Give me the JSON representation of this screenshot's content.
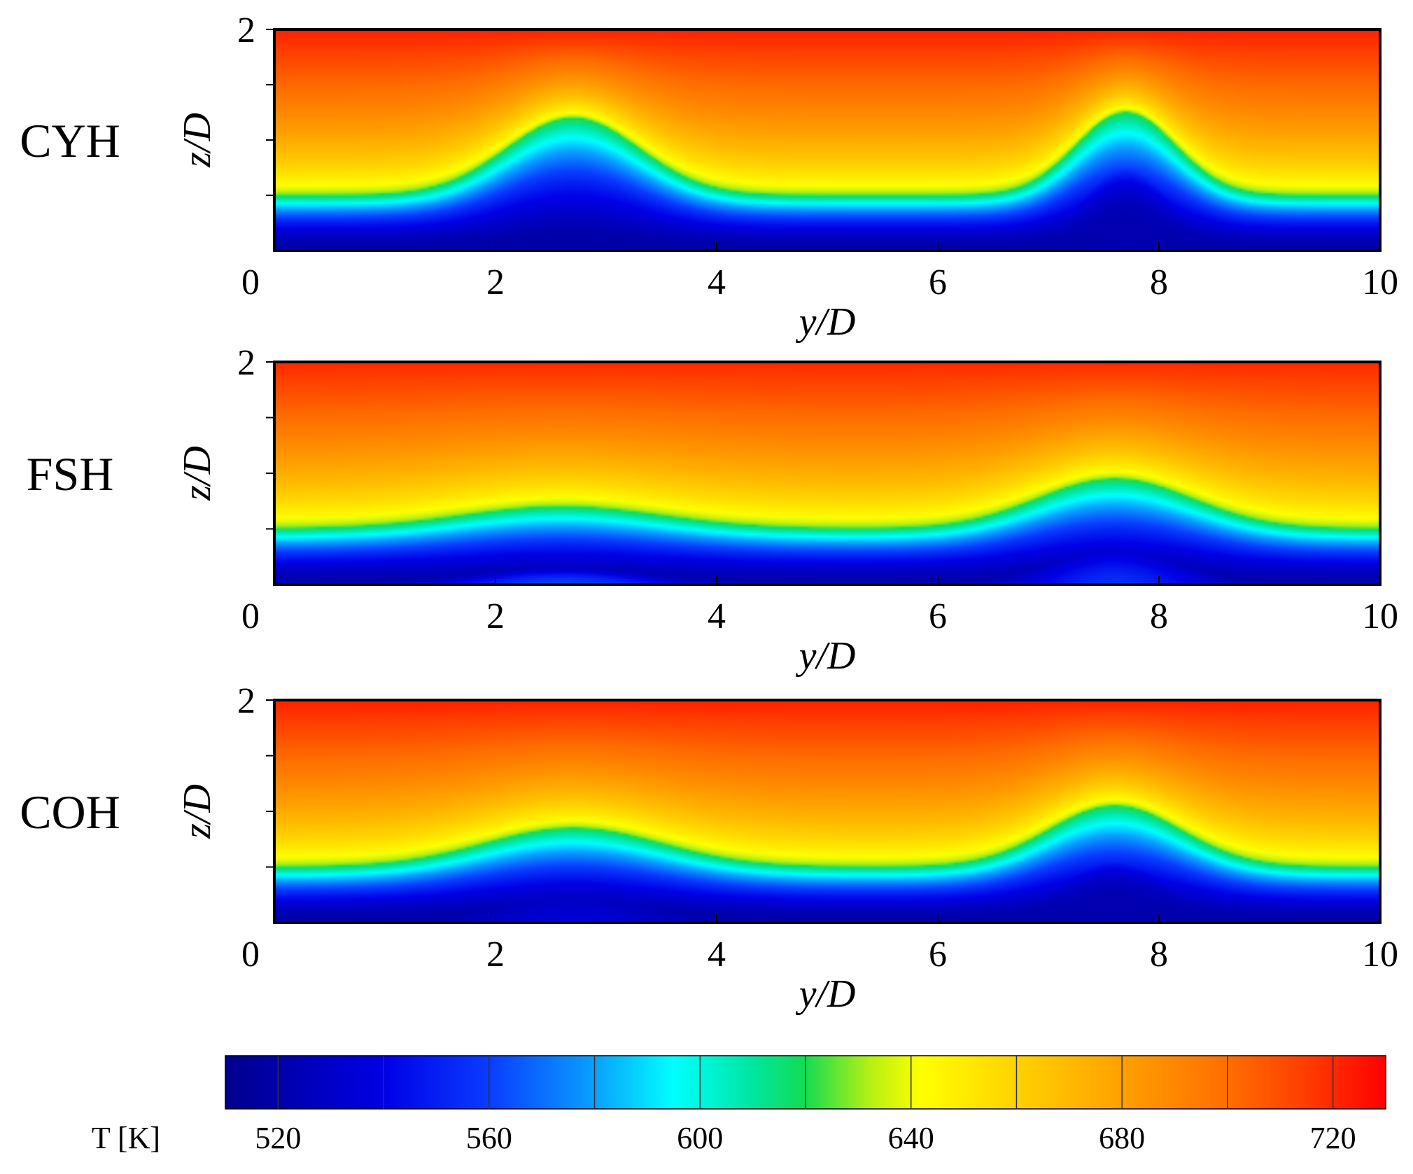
{
  "chart_data": [
    {
      "type": "heatmap",
      "panel_label": "CYH",
      "quantity": "T",
      "unit": "K",
      "xlabel": "y/D",
      "ylabel": "z/D",
      "xlim": [
        0,
        10
      ],
      "ylim": [
        0,
        2
      ],
      "x_ticks": [
        "0",
        "2",
        "4",
        "6",
        "8",
        "10"
      ],
      "y_ticks": [
        "2"
      ],
      "x_tick_values": [
        0,
        2,
        4,
        6,
        8,
        10
      ],
      "y_tick_values": [
        0.5,
        1.0,
        1.5,
        2.0
      ],
      "field": {
        "wall_T": 518,
        "top_T": 722,
        "base_front_height": 0.5,
        "plumes": [
          {
            "y_center": 2.7,
            "sigma": 0.6,
            "front_height": 1.2,
            "core_T": 520,
            "core_height": 0.28,
            "core_sigma": 0.55
          },
          {
            "y_center": 7.7,
            "sigma": 0.45,
            "front_height": 1.25,
            "core_T": 522,
            "core_height": 0.75,
            "core_sigma": 0.4
          }
        ]
      }
    },
    {
      "type": "heatmap",
      "panel_label": "FSH",
      "quantity": "T",
      "unit": "K",
      "xlabel": "y/D",
      "ylabel": "z/D",
      "xlim": [
        0,
        10
      ],
      "ylim": [
        0,
        2
      ],
      "x_ticks": [
        "0",
        "2",
        "4",
        "6",
        "8",
        "10"
      ],
      "y_ticks": [
        "2"
      ],
      "x_tick_values": [
        0,
        2,
        4,
        6,
        8,
        10
      ],
      "y_tick_values": [
        0.5,
        1.0,
        1.5,
        2.0
      ],
      "field": {
        "wall_T": 520,
        "top_T": 720,
        "base_front_height": 0.5,
        "plumes": [
          {
            "y_center": 2.6,
            "sigma": 0.9,
            "front_height": 0.7,
            "core_T": 560,
            "core_height": 0.15,
            "core_sigma": 0.8
          },
          {
            "y_center": 7.6,
            "sigma": 0.7,
            "front_height": 0.95,
            "core_T": 555,
            "core_height": 0.3,
            "core_sigma": 0.6
          }
        ]
      }
    },
    {
      "type": "heatmap",
      "panel_label": "COH",
      "quantity": "T",
      "unit": "K",
      "xlabel": "y/D",
      "ylabel": "z/D",
      "xlim": [
        0,
        10
      ],
      "ylim": [
        0,
        2
      ],
      "x_ticks": [
        "0",
        "2",
        "4",
        "6",
        "8",
        "10"
      ],
      "y_ticks": [
        "2"
      ],
      "x_tick_values": [
        0,
        2,
        4,
        6,
        8,
        10
      ],
      "y_tick_values": [
        0.5,
        1.0,
        1.5,
        2.0
      ],
      "field": {
        "wall_T": 518,
        "top_T": 722,
        "base_front_height": 0.5,
        "plumes": [
          {
            "y_center": 2.7,
            "sigma": 0.8,
            "front_height": 0.85,
            "core_T": 535,
            "core_height": 0.25,
            "core_sigma": 0.7
          },
          {
            "y_center": 7.6,
            "sigma": 0.6,
            "front_height": 1.05,
            "core_T": 522,
            "core_height": 0.55,
            "core_sigma": 0.5
          }
        ]
      }
    }
  ],
  "colorbar": {
    "label": "T [K]",
    "min": 510,
    "max": 730,
    "tick_labels": [
      "520",
      "560",
      "600",
      "640",
      "680",
      "720"
    ],
    "tick_values": [
      520,
      560,
      600,
      640,
      680,
      720
    ],
    "divider_values": [
      520,
      540,
      560,
      580,
      600,
      620,
      640,
      660,
      680,
      700,
      720
    ],
    "stops": [
      {
        "T": 510,
        "color": "#00008c"
      },
      {
        "T": 540,
        "color": "#0000e6"
      },
      {
        "T": 560,
        "color": "#0a3cff"
      },
      {
        "T": 580,
        "color": "#0aa0ff"
      },
      {
        "T": 595,
        "color": "#00ffff"
      },
      {
        "T": 610,
        "color": "#00e6a0"
      },
      {
        "T": 620,
        "color": "#14dc50"
      },
      {
        "T": 632,
        "color": "#b4f014"
      },
      {
        "T": 642,
        "color": "#ffff00"
      },
      {
        "T": 660,
        "color": "#ffd200"
      },
      {
        "T": 680,
        "color": "#ffa000"
      },
      {
        "T": 700,
        "color": "#ff6e00"
      },
      {
        "T": 715,
        "color": "#ff3c00"
      },
      {
        "T": 730,
        "color": "#ff0000"
      }
    ]
  }
}
